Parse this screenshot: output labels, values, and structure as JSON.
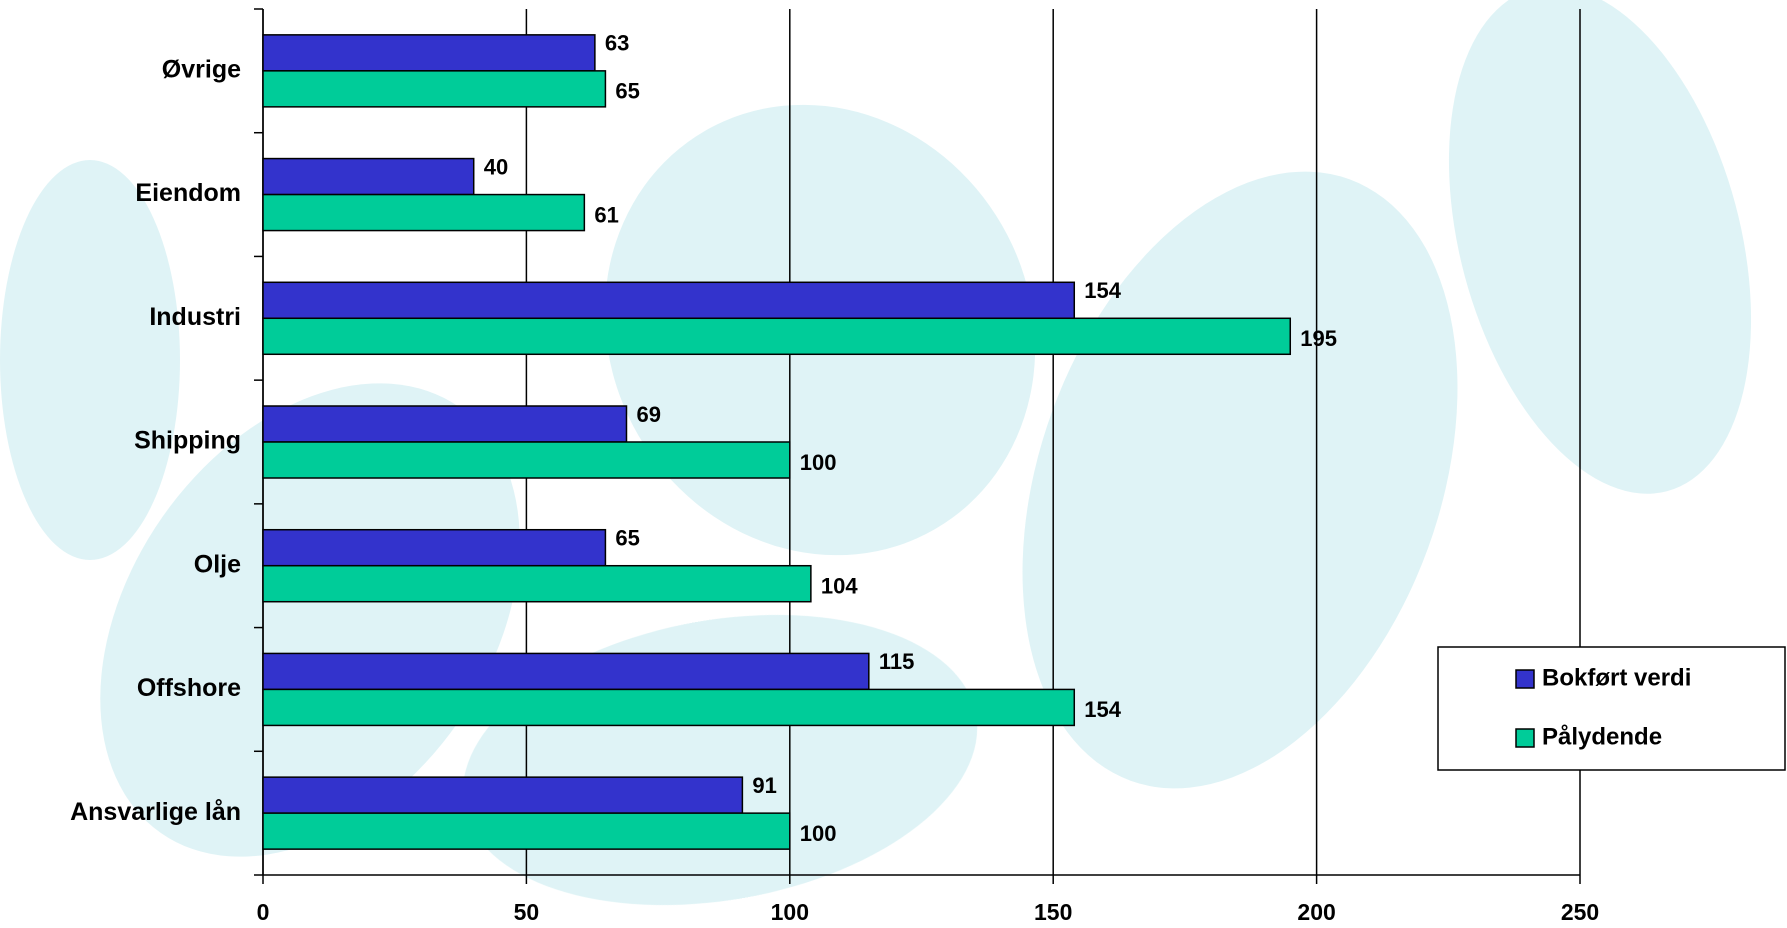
{
  "chart_data": {
    "type": "hbar",
    "categories": [
      "Øvrige",
      "Eiendom",
      "Industri",
      "Shipping",
      "Olje",
      "Offshore",
      "Ansvarlige lån"
    ],
    "series": [
      {
        "name": "Bokført verdi",
        "color": "#3333cc",
        "values": [
          63,
          40,
          154,
          69,
          65,
          115,
          91
        ]
      },
      {
        "name": "Pålydende",
        "color": "#00cc99",
        "values": [
          65,
          61,
          195,
          100,
          104,
          154,
          100
        ]
      }
    ],
    "xlim": [
      0,
      250
    ],
    "xticks": [
      0,
      50,
      100,
      150,
      200,
      250
    ],
    "grid": true,
    "legend": "right"
  }
}
